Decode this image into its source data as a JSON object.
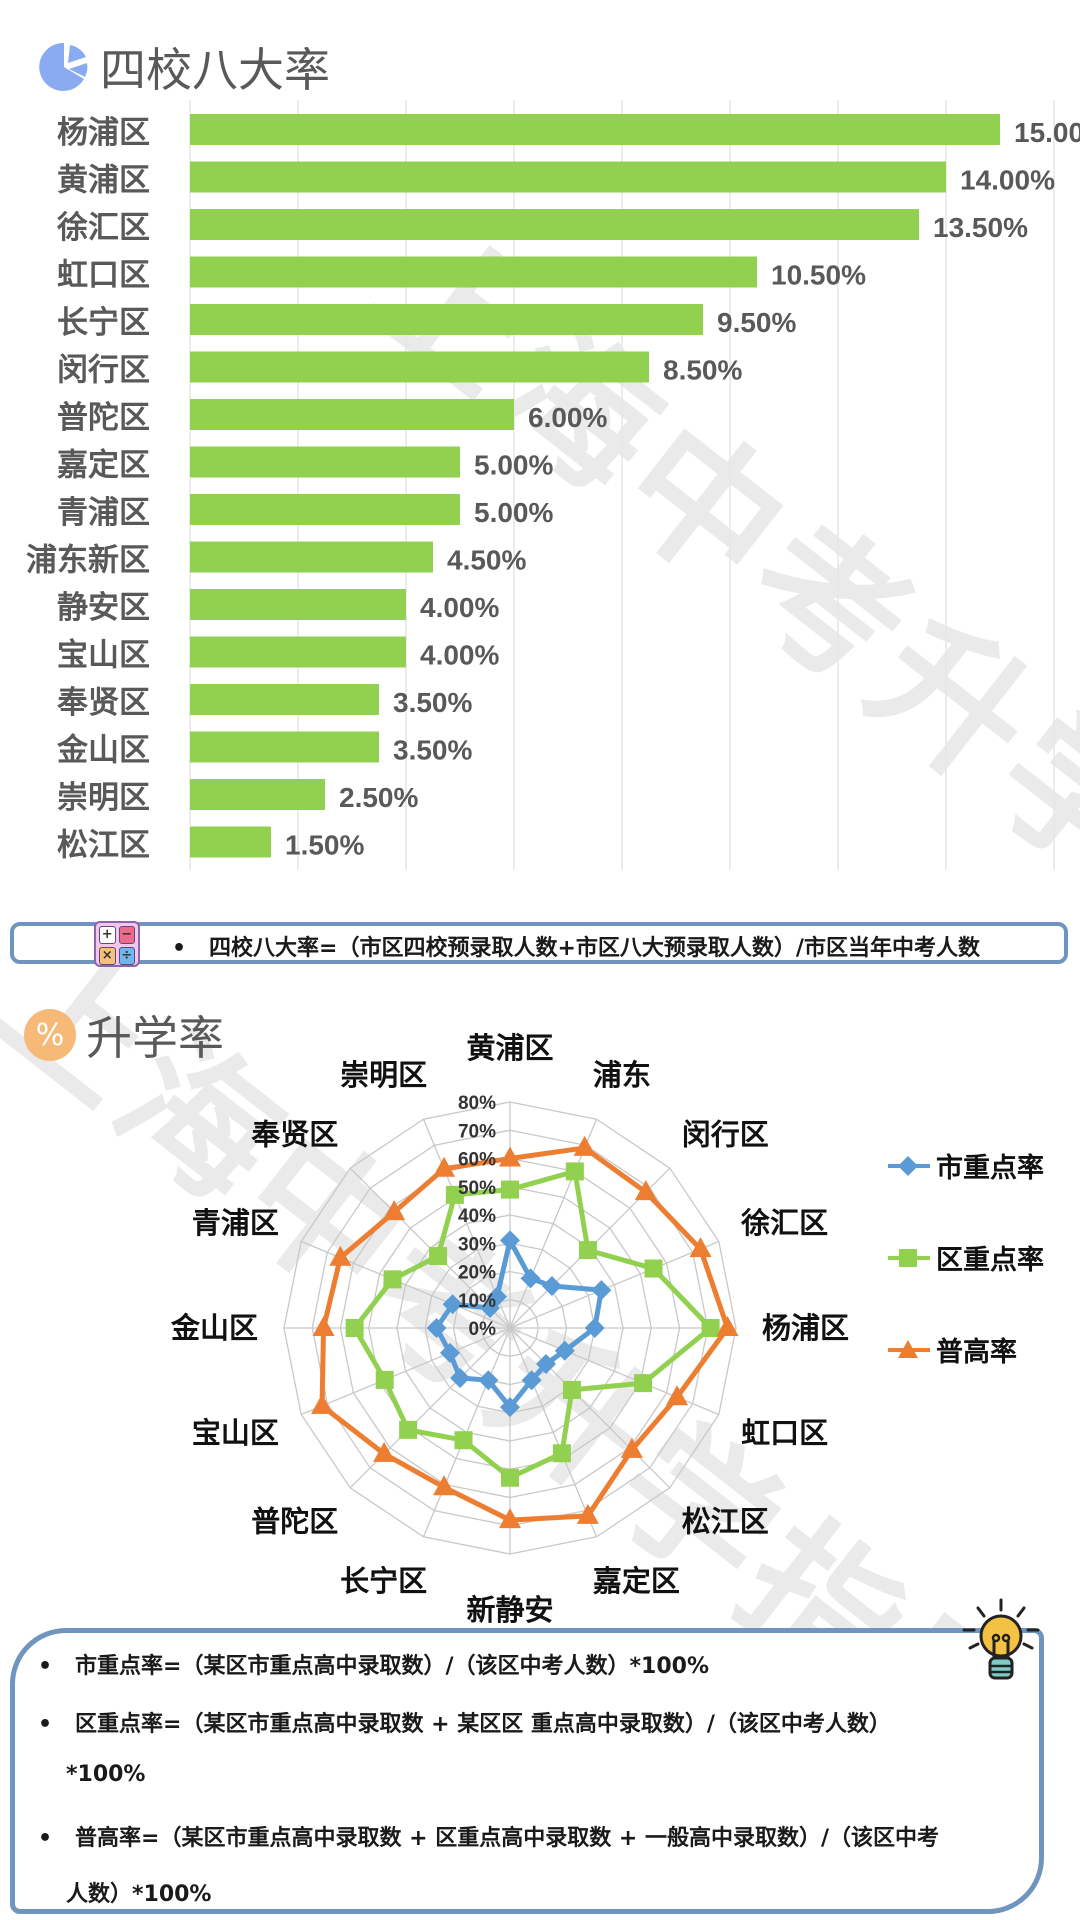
{
  "watermark": "上海中考升学指导",
  "section1": {
    "title": "四校八大率",
    "icon": "pie-chart-icon",
    "icon_color": "#8aaaf2"
  },
  "formula1": {
    "icon": "calculator-icon",
    "bullet": "•",
    "text": "四校八大率=（市区四校预录取人数+市区八大预录取人数）/市区当年中考人数"
  },
  "section2": {
    "title": "升学率",
    "icon": "percent-icon",
    "icon_color": "#f7b978"
  },
  "formula2": {
    "icon": "lightbulb-icon",
    "bullet": "•",
    "lines": [
      "市重点率=（某区市重点高中录取数）/（该区中考人数）*100%",
      "区重点率=（某区市重点高中录取数 + 某区区 重点高中录取数）/（该区中考人数）",
      "*100%",
      "普高率=（某区市重点高中录取数 + 区重点高中录取数 + 一般高中录取数）/（该区中考",
      "人数）*100%"
    ]
  },
  "chart_data": [
    {
      "type": "bar",
      "orientation": "horizontal",
      "title": "四校八大率",
      "categories": [
        "杨浦区",
        "黄浦区",
        "徐汇区",
        "虹口区",
        "长宁区",
        "闵行区",
        "普陀区",
        "嘉定区",
        "青浦区",
        "浦东新区",
        "静安区",
        "宝山区",
        "奉贤区",
        "金山区",
        "崇明区",
        "松江区"
      ],
      "values": [
        15.0,
        14.0,
        13.5,
        10.5,
        9.5,
        8.5,
        6.0,
        5.0,
        5.0,
        4.5,
        4.0,
        4.0,
        3.5,
        3.5,
        2.5,
        1.5
      ],
      "labels": [
        "15.00%",
        "14.00%",
        "13.50%",
        "10.50%",
        "9.50%",
        "8.50%",
        "6.00%",
        "5.00%",
        "5.00%",
        "4.50%",
        "4.00%",
        "4.00%",
        "3.50%",
        "3.50%",
        "2.50%",
        "1.50%"
      ],
      "xlabel": "",
      "ylabel": "",
      "xlim": [
        0,
        16
      ],
      "grid": true,
      "bar_color": "#92d050"
    },
    {
      "type": "radar",
      "title": "升学率",
      "categories": [
        "黄浦区",
        "浦东",
        "闵行区",
        "徐汇区",
        "杨浦区",
        "虹口区",
        "松江区",
        "嘉定区",
        "新静安",
        "长宁区",
        "普陀区",
        "宝山区",
        "金山区",
        "青浦区",
        "奉贤区",
        "崇明区"
      ],
      "tick_labels": [
        "0%",
        "10%",
        "20%",
        "30%",
        "40%",
        "50%",
        "60%",
        "70%",
        "80%"
      ],
      "rlim": [
        0,
        80
      ],
      "legend_position": "right",
      "series": [
        {
          "name": "市重点率",
          "color": "#5b9bd5",
          "marker": "diamond",
          "values": [
            31,
            19,
            21,
            35,
            30,
            21,
            18,
            20,
            28,
            20,
            25,
            23,
            26,
            22,
            10,
            12
          ]
        },
        {
          "name": "区重点率",
          "color": "#92d050",
          "marker": "square",
          "values": [
            49,
            60,
            39,
            55,
            71,
            51,
            31,
            48,
            53,
            43,
            51,
            48,
            55,
            45,
            36,
            51
          ]
        },
        {
          "name": "普高率",
          "color": "#ed7d31",
          "marker": "triangle",
          "values": [
            60,
            69,
            68,
            73,
            77,
            64,
            61,
            72,
            68,
            61,
            63,
            72,
            66,
            65,
            58,
            61
          ]
        }
      ]
    }
  ]
}
